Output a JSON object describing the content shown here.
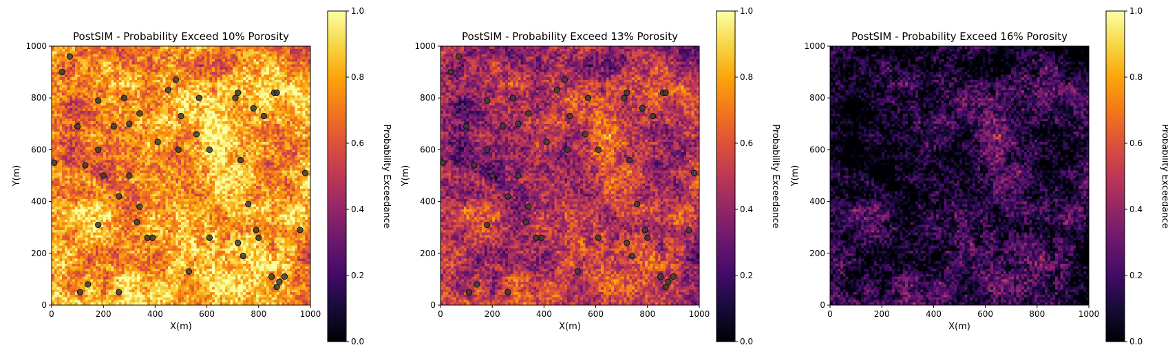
{
  "figure": {
    "colormap": "inferno",
    "colors": {
      "well_marker": "#3a3a3a",
      "axis": "#000000",
      "background": "#ffffff"
    }
  },
  "chart_data": [
    {
      "type": "heatmap",
      "title": "PostSIM - Probability Exceed 10% Porosity",
      "xlabel": "X(m)",
      "ylabel": "Y(m)",
      "xlim": [
        0,
        1000
      ],
      "ylim": [
        0,
        1000
      ],
      "xticks": [
        "0",
        "200",
        "400",
        "600",
        "800",
        "1000"
      ],
      "yticks": [
        "0",
        "200",
        "400",
        "600",
        "800",
        "1000"
      ],
      "grid_cells": 100,
      "cell_size_m": 10,
      "mean_probability": 0.78,
      "colorbar": {
        "label": "Probability Exceedance",
        "range": [
          0,
          1
        ],
        "ticks": [
          "0.0",
          "0.2",
          "0.4",
          "0.6",
          "0.8",
          "1.0"
        ]
      },
      "wells_visible": true
    },
    {
      "type": "heatmap",
      "title": "PostSIM - Probability Exceed 13% Porosity",
      "xlabel": "X(m)",
      "ylabel": "Y(m)",
      "xlim": [
        0,
        1000
      ],
      "ylim": [
        0,
        1000
      ],
      "xticks": [
        "0",
        "200",
        "400",
        "600",
        "800",
        "1000"
      ],
      "yticks": [
        "0",
        "200",
        "400",
        "600",
        "800",
        "1000"
      ],
      "grid_cells": 100,
      "cell_size_m": 10,
      "mean_probability": 0.48,
      "colorbar": {
        "label": "Probability Exceedance",
        "range": [
          0,
          1
        ],
        "ticks": [
          "0.0",
          "0.2",
          "0.4",
          "0.6",
          "0.8",
          "1.0"
        ]
      },
      "wells_visible": true
    },
    {
      "type": "heatmap",
      "title": "PostSIM - Probability Exceed 16% Porosity",
      "xlabel": "X(m)",
      "ylabel": "Y(m)",
      "xlim": [
        0,
        1000
      ],
      "ylim": [
        0,
        1000
      ],
      "xticks": [
        "0",
        "200",
        "400",
        "600",
        "800",
        "1000"
      ],
      "yticks": [
        "0",
        "200",
        "400",
        "600",
        "800",
        "1000"
      ],
      "grid_cells": 100,
      "cell_size_m": 10,
      "mean_probability": 0.14,
      "colorbar": {
        "label": "Probability Exceedance",
        "range": [
          0,
          1
        ],
        "ticks": [
          "0.0",
          "0.2",
          "0.4",
          "0.6",
          "0.8",
          "1.0"
        ]
      },
      "wells_visible": false
    }
  ],
  "wells": {
    "x": [
      70,
      40,
      180,
      280,
      300,
      340,
      480,
      450,
      570,
      710,
      720,
      780,
      860,
      870,
      820,
      100,
      240,
      410,
      490,
      500,
      560,
      610,
      730,
      10,
      130,
      200,
      300,
      260,
      180,
      340,
      330,
      390,
      370,
      610,
      720,
      740,
      760,
      790,
      800,
      530,
      980,
      960,
      850,
      880,
      900,
      870,
      110,
      140,
      260,
      180
    ],
    "y": [
      960,
      900,
      790,
      800,
      700,
      740,
      870,
      830,
      800,
      800,
      820,
      760,
      820,
      820,
      730,
      690,
      690,
      630,
      600,
      730,
      660,
      600,
      560,
      550,
      540,
      500,
      500,
      420,
      600,
      380,
      320,
      260,
      260,
      260,
      240,
      190,
      390,
      290,
      260,
      130,
      510,
      290,
      110,
      90,
      110,
      70,
      50,
      80,
      50,
      310
    ]
  }
}
